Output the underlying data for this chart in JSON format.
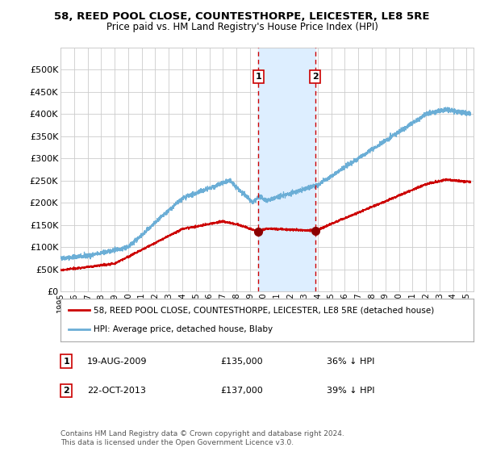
{
  "title": "58, REED POOL CLOSE, COUNTESTHORPE, LEICESTER, LE8 5RE",
  "subtitle": "Price paid vs. HM Land Registry's House Price Index (HPI)",
  "hpi_label": "HPI: Average price, detached house, Blaby",
  "property_label": "58, REED POOL CLOSE, COUNTESTHORPE, LEICESTER, LE8 5RE (detached house)",
  "hpi_color": "#6baed6",
  "property_color": "#cc0000",
  "marker_color": "#8b0000",
  "highlight_color": "#ddeeff",
  "vline_color": "#cc0000",
  "grid_color": "#cccccc",
  "background_color": "#ffffff",
  "ylim": [
    0,
    550000
  ],
  "yticks": [
    0,
    50000,
    100000,
    150000,
    200000,
    250000,
    300000,
    350000,
    400000,
    450000,
    500000
  ],
  "xlim_start": 1995.0,
  "xlim_end": 2025.5,
  "sale1_x": 2009.63,
  "sale1_y": 135000,
  "sale1_label": "1",
  "sale1_date": "19-AUG-2009",
  "sale1_price": "£135,000",
  "sale1_hpi": "36% ↓ HPI",
  "sale2_x": 2013.81,
  "sale2_y": 137000,
  "sale2_label": "2",
  "sale2_date": "22-OCT-2013",
  "sale2_price": "£137,000",
  "sale2_hpi": "39% ↓ HPI",
  "highlight_x_start": 2009.63,
  "highlight_x_end": 2013.81,
  "footnote": "Contains HM Land Registry data © Crown copyright and database right 2024.\nThis data is licensed under the Open Government Licence v3.0."
}
